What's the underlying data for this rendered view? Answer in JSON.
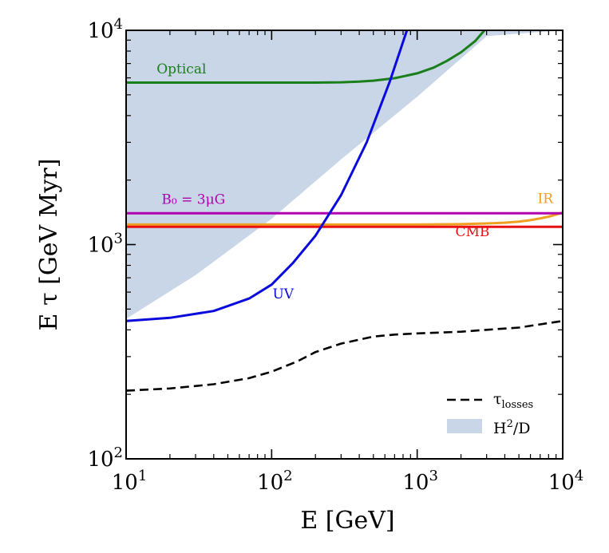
{
  "chart_data": {
    "type": "line",
    "xscale": "log",
    "yscale": "log",
    "xlim": [
      10,
      10000
    ],
    "ylim": [
      100,
      10000
    ],
    "xlabel": "E [GeV]",
    "ylabel": "E τ [GeV Myr]",
    "x_ticks": [
      {
        "value": 10,
        "base": "10",
        "exp": "1"
      },
      {
        "value": 100,
        "base": "10",
        "exp": "2"
      },
      {
        "value": 1000,
        "base": "10",
        "exp": "3"
      },
      {
        "value": 10000,
        "base": "10",
        "exp": "4"
      }
    ],
    "y_ticks": [
      {
        "value": 100,
        "base": "10",
        "exp": "2"
      },
      {
        "value": 1000,
        "base": "10",
        "exp": "3"
      },
      {
        "value": 10000,
        "base": "10",
        "exp": "4"
      }
    ],
    "band": {
      "name": "H2/D",
      "color": "#c9d6e8",
      "x": [
        10,
        30,
        100,
        300,
        1000,
        3000,
        10000
      ],
      "upper": [
        10000,
        10000,
        10000,
        10000,
        10000,
        10000,
        10000
      ],
      "lower": [
        450,
        720,
        1320,
        2500,
        4900,
        9400,
        10000
      ]
    },
    "series": [
      {
        "name": "Optical",
        "label": "Optical",
        "color": "#1a7f1a",
        "x": [
          10,
          100,
          200,
          300,
          400,
          500,
          700,
          1000,
          1300,
          1600,
          2000,
          2500,
          2900
        ],
        "y": [
          5700,
          5700,
          5700,
          5720,
          5760,
          5820,
          5980,
          6300,
          6700,
          7200,
          7900,
          8900,
          10000
        ]
      },
      {
        "name": "UV",
        "label": "UV",
        "color": "#0a0adc",
        "x": [
          10,
          20,
          40,
          70,
          100,
          140,
          200,
          300,
          450,
          650,
          850
        ],
        "y": [
          440,
          455,
          490,
          560,
          650,
          820,
          1100,
          1700,
          3000,
          5800,
          10000
        ]
      },
      {
        "name": "B0",
        "label": "B₀ = 3μG",
        "color": "#b000b0",
        "x": [
          10,
          10000
        ],
        "y": [
          1400,
          1400
        ]
      },
      {
        "name": "IR",
        "label": "IR",
        "color": "#f0a020",
        "x": [
          10,
          1000,
          2000,
          3000,
          4000,
          5000,
          6000,
          7000,
          8000,
          9000,
          10000
        ],
        "y": [
          1240,
          1240,
          1245,
          1255,
          1265,
          1280,
          1300,
          1325,
          1350,
          1380,
          1410
        ]
      },
      {
        "name": "CMB",
        "label": "CMB",
        "color": "#e81010",
        "x": [
          10,
          10000
        ],
        "y": [
          1210,
          1210
        ]
      },
      {
        "name": "tau_losses",
        "label": "τ",
        "label_sub": "losses",
        "color": "#000000",
        "dash": true,
        "x": [
          10,
          20,
          40,
          70,
          100,
          150,
          200,
          300,
          500,
          700,
          1000,
          2000,
          3000,
          5000,
          10000
        ],
        "y": [
          208,
          213,
          223,
          238,
          255,
          285,
          315,
          345,
          372,
          380,
          385,
          392,
          400,
          410,
          440
        ]
      }
    ],
    "legend": {
      "position": "bottom-right",
      "entries": [
        {
          "type": "dashed-line",
          "text": "τ",
          "sub": "losses",
          "color": "#000000"
        },
        {
          "type": "patch",
          "text": "H",
          "sup": "2",
          "rest": "/D",
          "color": "#c9d6e8"
        }
      ]
    }
  }
}
